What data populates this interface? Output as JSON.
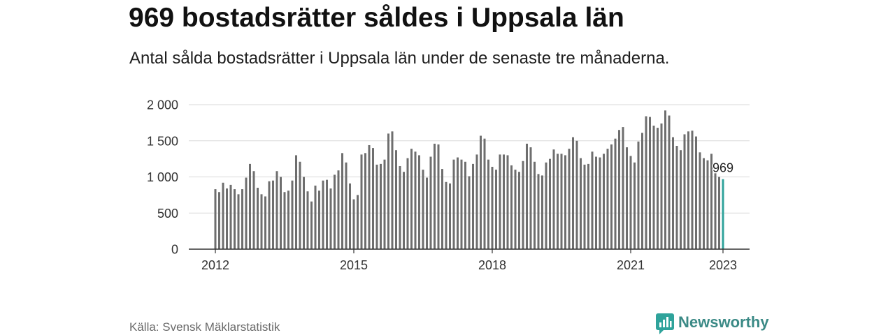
{
  "source": "Källa: Svensk Mäklarstatistik",
  "brand": {
    "name": "Newsworthy",
    "icon": "newsworthy-logo-icon"
  },
  "colors": {
    "bar": "#6e6e6e",
    "highlight": "#2fa39b",
    "grid": "#d9d9d9",
    "axis": "#333333",
    "brand": "#3b8a86"
  },
  "chart_data": {
    "type": "bar",
    "title": "969 bostadsrätter såldes i Uppsala län",
    "subtitle": "Antal sålda bostadsrätter i Uppsala län under de senaste tre månaderna.",
    "ylim": [
      0,
      2000
    ],
    "yticks": [
      {
        "value": 2000,
        "label": "2 000"
      },
      {
        "value": 1500,
        "label": "1 500"
      },
      {
        "value": 1000,
        "label": "1 000"
      },
      {
        "value": 500,
        "label": "500"
      },
      {
        "value": 0,
        "label": "0"
      }
    ],
    "xtick_labels": [
      "2012",
      "2015",
      "2018",
      "2021",
      "2023"
    ],
    "grid": true,
    "monthly": [
      {
        "year": 2012,
        "values": [
          830,
          790,
          920,
          840,
          890,
          830,
          760,
          830,
          990,
          1180,
          1080,
          850
        ]
      },
      {
        "year": 2013,
        "values": [
          760,
          730,
          940,
          950,
          1080,
          1000,
          790,
          810,
          950,
          1300,
          1210,
          1000
        ]
      },
      {
        "year": 2014,
        "values": [
          800,
          660,
          880,
          810,
          950,
          960,
          840,
          1030,
          1090,
          1330,
          1200,
          910
        ]
      },
      {
        "year": 2015,
        "values": [
          690,
          750,
          1310,
          1330,
          1440,
          1400,
          1170,
          1180,
          1240,
          1600,
          1630,
          1370
        ]
      },
      {
        "year": 2016,
        "values": [
          1150,
          1070,
          1260,
          1390,
          1350,
          1300,
          1100,
          990,
          1280,
          1460,
          1450,
          1110
        ]
      },
      {
        "year": 2017,
        "values": [
          930,
          910,
          1240,
          1270,
          1240,
          1210,
          1010,
          1180,
          1310,
          1570,
          1530,
          1240
        ]
      },
      {
        "year": 2018,
        "values": [
          1140,
          1100,
          1310,
          1310,
          1300,
          1160,
          1100,
          1070,
          1220,
          1460,
          1410,
          1210
        ]
      },
      {
        "year": 2019,
        "values": [
          1040,
          1020,
          1200,
          1250,
          1380,
          1320,
          1320,
          1300,
          1390,
          1550,
          1500,
          1260
        ]
      },
      {
        "year": 2020,
        "values": [
          1170,
          1180,
          1350,
          1280,
          1270,
          1320,
          1390,
          1450,
          1530,
          1650,
          1690,
          1410
        ]
      },
      {
        "year": 2021,
        "values": [
          1290,
          1200,
          1490,
          1610,
          1840,
          1830,
          1710,
          1680,
          1740,
          1920,
          1850,
          1550
        ]
      },
      {
        "year": 2022,
        "values": [
          1430,
          1370,
          1590,
          1630,
          1640,
          1560,
          1340,
          1260,
          1230,
          1320,
          1050,
          1000
        ]
      },
      {
        "year": 2023,
        "values": [
          969
        ]
      }
    ],
    "annotation": {
      "text": "969"
    }
  }
}
